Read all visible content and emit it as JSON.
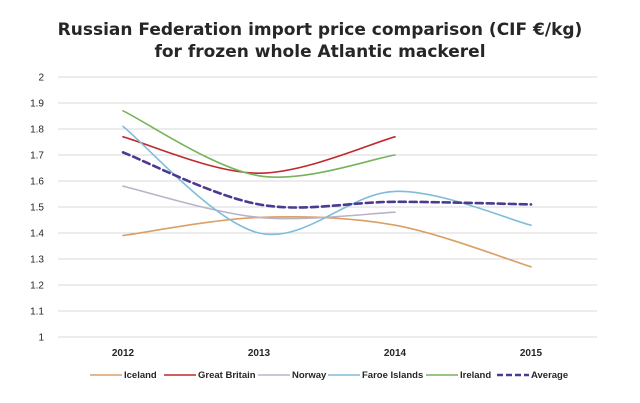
{
  "chart_data": {
    "type": "line",
    "title_line1": "Russian Federation import price comparison (CIF €/kg)",
    "title_line2": "for frozen whole Atlantic mackerel",
    "xlabel": "",
    "ylabel": "",
    "categories": [
      "2012",
      "2013",
      "2014",
      "2015"
    ],
    "ylim": [
      1,
      2
    ],
    "yticks": [
      "1",
      "1.1",
      "1.2",
      "1.3",
      "1.4",
      "1.5",
      "1.6",
      "1.7",
      "1.8",
      "1.9",
      "2"
    ],
    "grid": "horizontal",
    "legend_position": "bottom",
    "series": [
      {
        "name": "Iceland",
        "color": "#d9a066",
        "dashed": false,
        "values": [
          1.39,
          1.46,
          1.43,
          1.27
        ]
      },
      {
        "name": "Great Britain",
        "color": "#c0282d",
        "dashed": false,
        "values": [
          1.77,
          1.63,
          1.77,
          null
        ]
      },
      {
        "name": "Norway",
        "color": "#bcb2c6",
        "dashed": false,
        "values": [
          1.58,
          1.46,
          1.48,
          null
        ]
      },
      {
        "name": "Faroe Islands",
        "color": "#7fbcd8",
        "dashed": false,
        "values": [
          1.81,
          1.4,
          1.56,
          1.43
        ]
      },
      {
        "name": "Ireland",
        "color": "#76b35c",
        "dashed": false,
        "values": [
          1.87,
          1.62,
          1.7,
          null
        ]
      },
      {
        "name": "Average",
        "color": "#4b3b8f",
        "dashed": true,
        "values": [
          1.71,
          1.51,
          1.52,
          1.51
        ]
      }
    ]
  }
}
